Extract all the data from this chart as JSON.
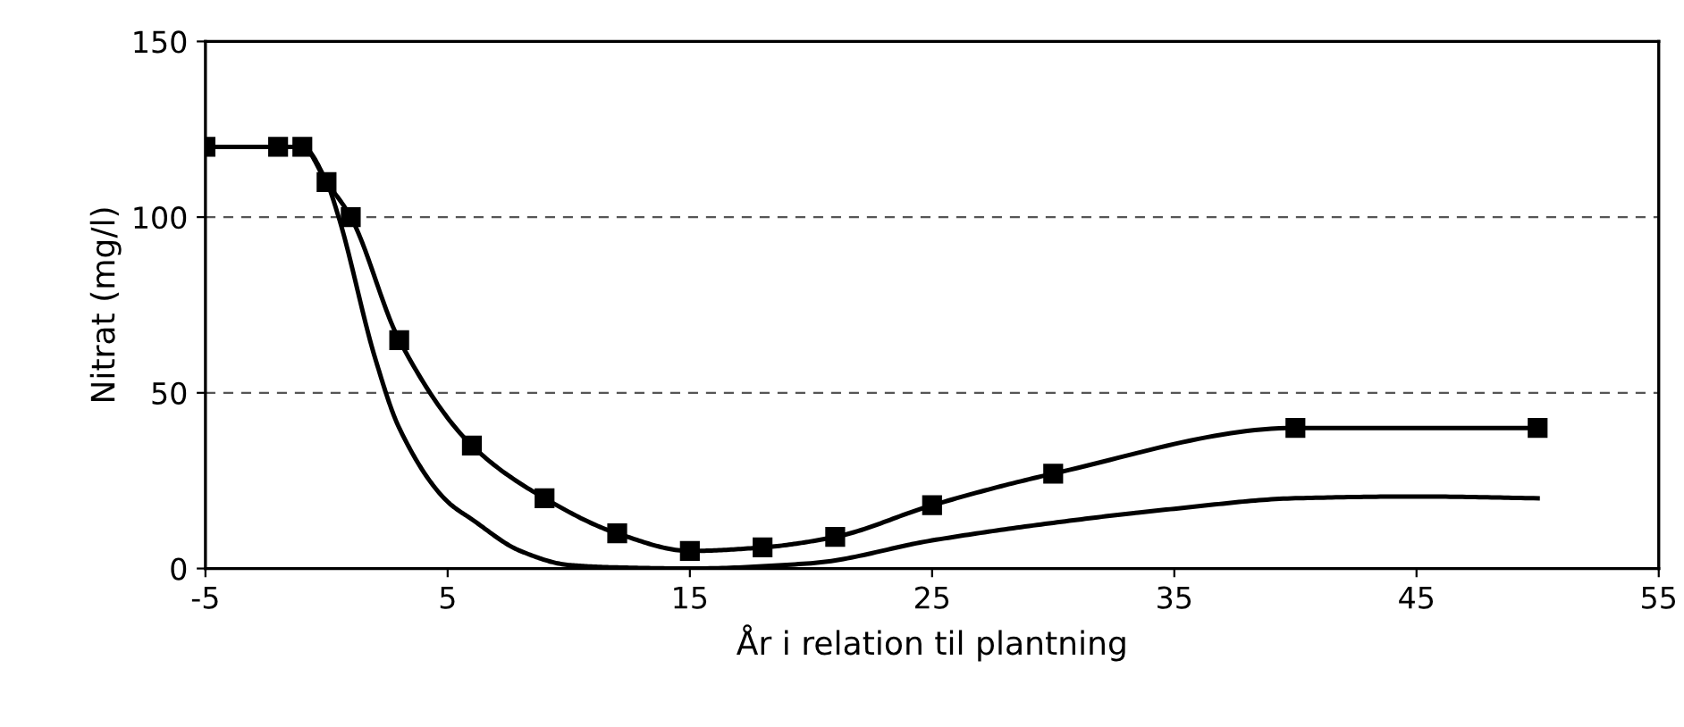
{
  "chart_data": {
    "type": "line",
    "xlabel": "År i relation til plantning",
    "ylabel": "Nitrat (mg/l)",
    "xlim": [
      -5,
      55
    ],
    "xticks": [
      -5,
      5,
      15,
      25,
      35,
      45,
      55
    ],
    "ylim": [
      0,
      150
    ],
    "yticks": [
      0,
      50,
      100,
      150
    ],
    "grid": "y",
    "legend": false,
    "series": [
      {
        "color": "#000000",
        "marker": "square",
        "x": [
          -5,
          -2,
          -1,
          0,
          1,
          3,
          6,
          9,
          12,
          15,
          18,
          21,
          25,
          30,
          40,
          50
        ],
        "values": [
          120,
          120,
          120,
          110,
          100,
          65,
          35,
          20,
          10,
          5,
          6,
          9,
          18,
          27,
          40,
          40
        ]
      },
      {
        "color": "#000000",
        "marker": "none",
        "x": [
          -5,
          -1,
          0,
          0.5,
          2,
          3,
          5,
          6,
          8,
          10,
          12,
          15,
          20,
          25,
          30,
          35,
          40,
          45,
          50
        ],
        "values": [
          120,
          120,
          110,
          100,
          60,
          40,
          19,
          14,
          5,
          1,
          0.3,
          0,
          1.5,
          8,
          13,
          17,
          20,
          20.5,
          20
        ]
      }
    ]
  }
}
